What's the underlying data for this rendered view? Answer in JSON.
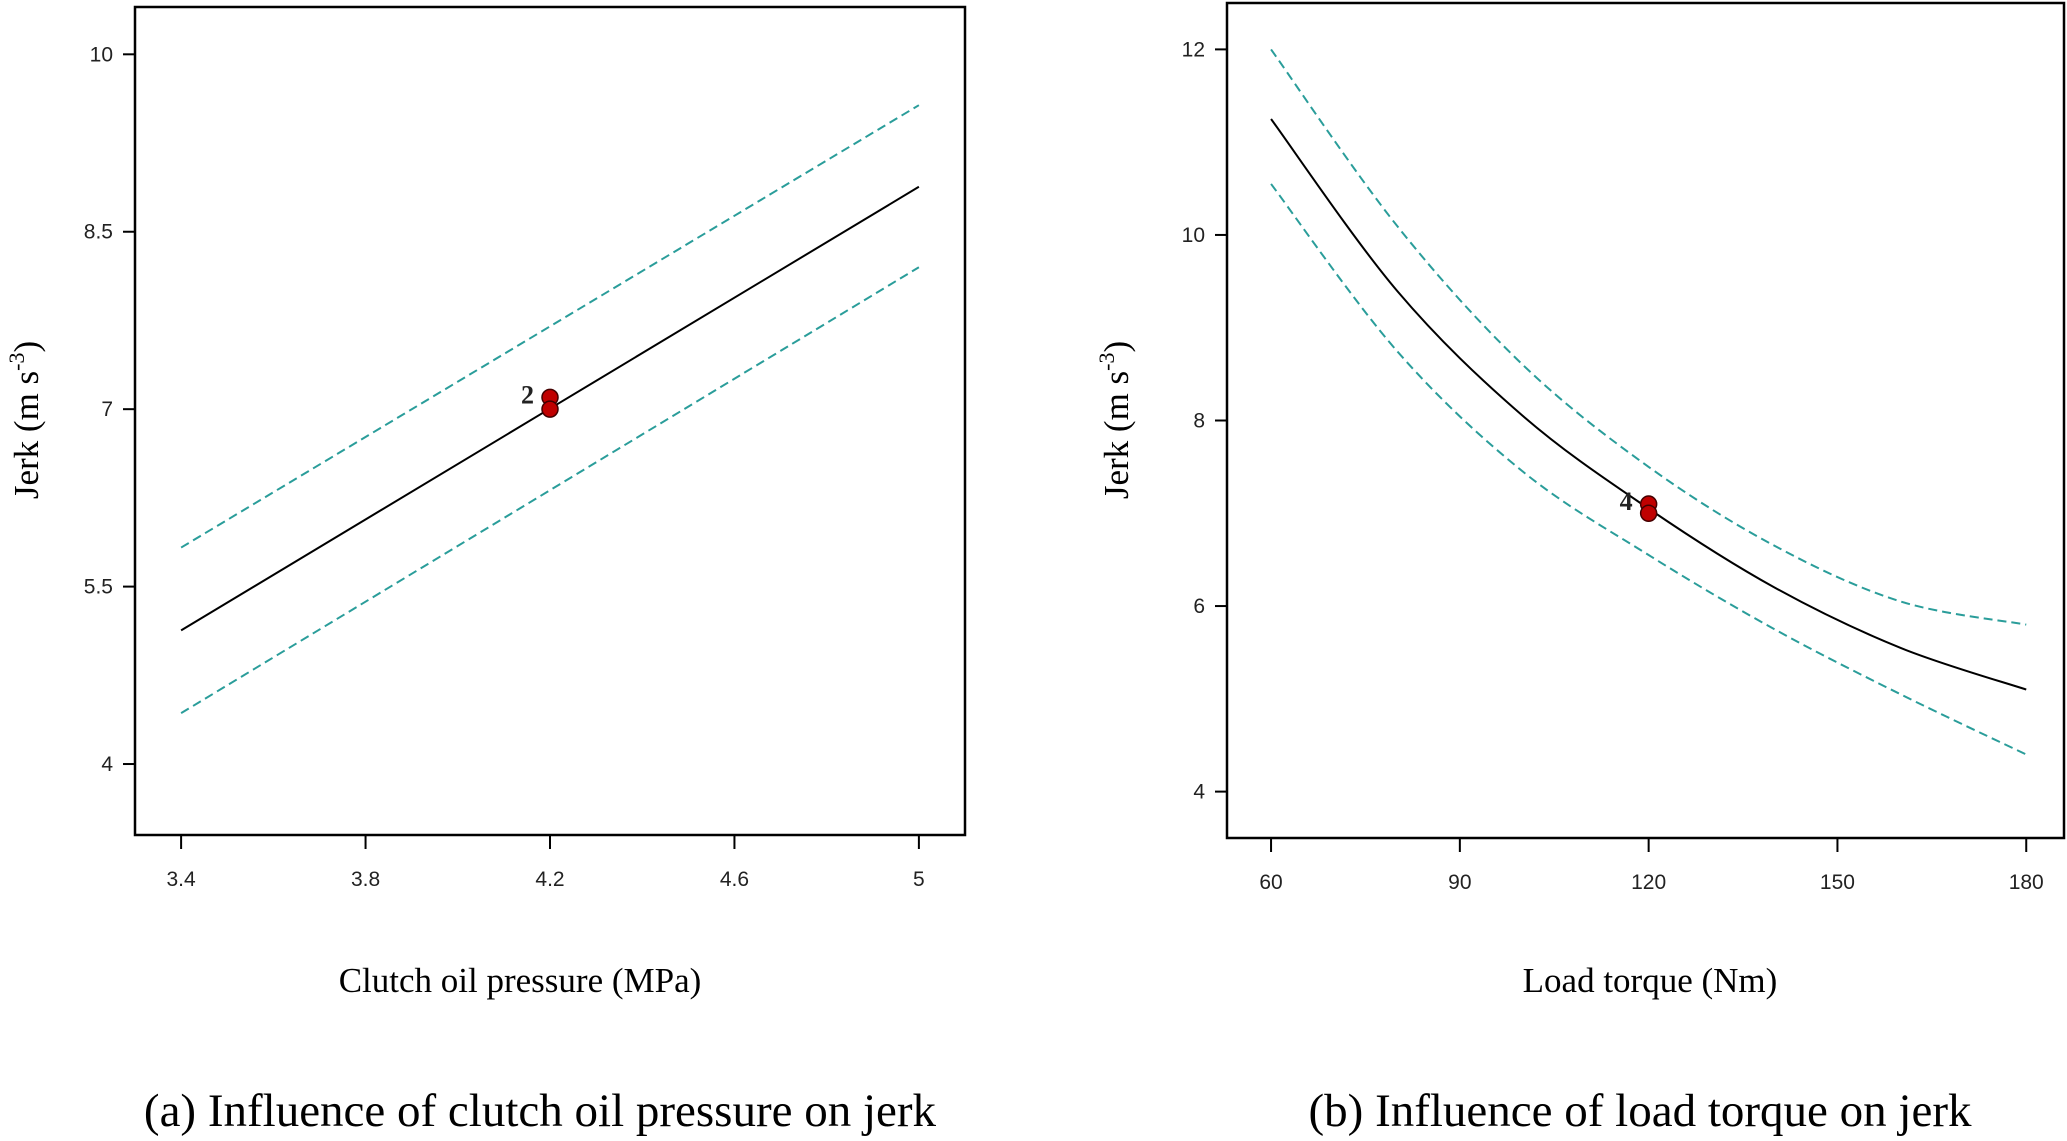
{
  "chart_data": [
    {
      "type": "line",
      "panel": "a",
      "caption": "(a) Influence of clutch oil pressure on jerk",
      "xlabel": "Clutch oil pressure  (MPa)",
      "ylabel": "Jerk  (m s",
      "ylabel_sup": "-3",
      "ylabel_close": ")",
      "xlim": [
        3.3,
        5.1
      ],
      "ylim": [
        3.4,
        10.4
      ],
      "xticks": [
        3.4,
        3.8,
        4.2,
        4.6,
        5
      ],
      "xtick_labels": [
        "3.4",
        "3.8",
        "4.2",
        "4.6",
        "5"
      ],
      "yticks": [
        4,
        5.5,
        7,
        8.5,
        10
      ],
      "ytick_labels": [
        "4",
        "5.5",
        "7",
        "8.5",
        "10"
      ],
      "x": [
        3.4,
        5.0
      ],
      "series": [
        {
          "name": "predicted",
          "style": "solid",
          "color": "#000000",
          "values": [
            5.13,
            8.88
          ]
        },
        {
          "name": "upper confidence band",
          "style": "dashed",
          "color": "#2a9d9a",
          "values": [
            5.83,
            9.57
          ]
        },
        {
          "name": "lower confidence band",
          "style": "dashed",
          "color": "#2a9d9a",
          "values": [
            4.43,
            8.2
          ]
        }
      ],
      "points": {
        "x": 4.2,
        "y": [
          7.1,
          7.0
        ],
        "color": "#c00000",
        "label": "2"
      }
    },
    {
      "type": "line",
      "panel": "b",
      "caption": "(b) Influence of load torque on jerk",
      "xlabel": "Load torque  (Nm)",
      "ylabel": "Jerk  (m s",
      "ylabel_sup": "-3",
      "ylabel_close": ")",
      "xlim": [
        53,
        186
      ],
      "ylim": [
        3.5,
        12.5
      ],
      "xticks": [
        60,
        90,
        120,
        150,
        180
      ],
      "xtick_labels": [
        "60",
        "90",
        "120",
        "150",
        "180"
      ],
      "yticks": [
        4,
        6,
        8,
        10,
        12
      ],
      "ytick_labels": [
        "4",
        "6",
        "8",
        "10",
        "12"
      ],
      "x": [
        60,
        80,
        100,
        120,
        140,
        160,
        180
      ],
      "series": [
        {
          "name": "predicted",
          "style": "solid",
          "color": "#000000",
          "values": [
            11.25,
            9.4,
            8.05,
            7.05,
            6.2,
            5.55,
            5.1
          ]
        },
        {
          "name": "upper confidence band",
          "style": "dashed",
          "color": "#2a9d9a",
          "values": [
            12.0,
            10.1,
            8.6,
            7.5,
            6.65,
            6.05,
            5.8
          ]
        },
        {
          "name": "lower confidence band",
          "style": "dashed",
          "color": "#2a9d9a",
          "values": [
            10.55,
            8.75,
            7.45,
            6.55,
            5.75,
            5.05,
            4.4
          ]
        }
      ],
      "points": {
        "x": 120,
        "y": [
          7.1,
          7.0
        ],
        "color": "#c00000",
        "label": "4"
      }
    }
  ]
}
